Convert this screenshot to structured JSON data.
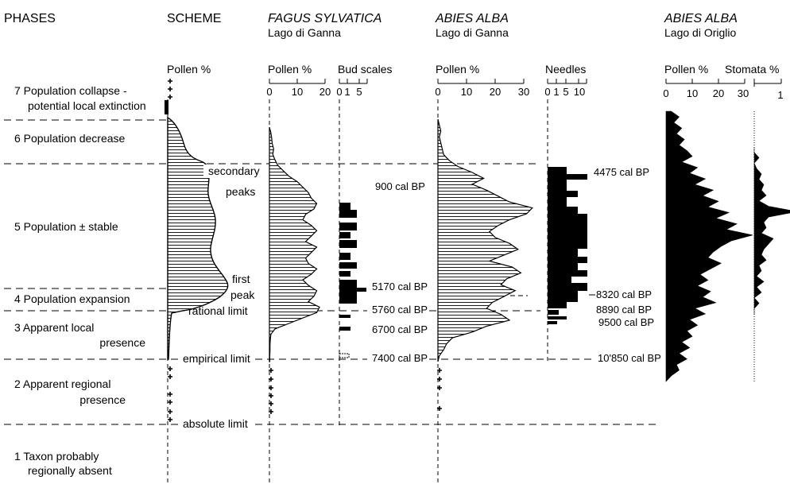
{
  "headers": {
    "phases": "PHASES",
    "scheme": "SCHEME",
    "fagus_title": "FAGUS SYLVATICA",
    "fagus_site": "Lago di Ganna",
    "abies_ganna_title": "ABIES ALBA",
    "abies_ganna_site": "Lago di Ganna",
    "abies_origlio_title": "ABIES ALBA",
    "abies_origlio_site": "Lago di Origlio"
  },
  "columns": {
    "scheme_pollen": "Pollen %",
    "fagus_pollen": "Pollen %",
    "bud_scales": "Bud scales",
    "abies_pollen": "Pollen %",
    "needles": "Needles",
    "origlio_pollen": "Pollen %",
    "stomata": "Stomata %"
  },
  "axes": {
    "fagus_pollen_ticks": [
      "0",
      "10",
      "20"
    ],
    "bud_scales_ticks": [
      "0",
      "1",
      "5"
    ],
    "abies_pollen_ticks": [
      "0",
      "10",
      "20",
      "30"
    ],
    "needles_ticks": [
      "0",
      "1",
      "5",
      "10"
    ],
    "origlio_pollen_ticks": [
      "0",
      "10",
      "20",
      "30"
    ],
    "stomata_ticks": [
      "1"
    ]
  },
  "phases": [
    {
      "line1": "7  Population collapse -",
      "line2": "potential local extinction"
    },
    {
      "line1": "6  Population decrease",
      "line2": ""
    },
    {
      "line1": "5  Population ± stable",
      "line2": ""
    },
    {
      "line1": "4  Population expansion",
      "line2": ""
    },
    {
      "line1": "3  Apparent local",
      "line2": "presence"
    },
    {
      "line1": "2  Apparent regional",
      "line2": "presence"
    },
    {
      "line1": "1  Taxon probably",
      "line2": "regionally absent"
    }
  ],
  "scheme_labels": {
    "secondary": "secondary",
    "peaks": "peaks",
    "first": "first",
    "peak": "peak",
    "rational_limit": "rational limit",
    "empirical_limit": "empirical limit",
    "absolute_limit": "absolute limit"
  },
  "dates": {
    "fagus": [
      "900 cal BP",
      "5170 cal BP",
      "5760 cal BP",
      "6700 cal BP",
      "7400 cal BP"
    ],
    "abies": [
      "4475 cal BP",
      "8320 cal BP",
      "8890 cal BP",
      "9500 cal BP",
      "10'850 cal BP"
    ]
  },
  "fagus_pollen_curve": [
    0,
    0.5,
    0.8,
    1,
    1.5,
    1.2,
    2,
    3,
    5,
    7,
    10,
    12,
    14,
    15,
    17,
    16,
    13,
    12,
    15,
    17,
    15,
    13,
    17,
    15,
    13,
    14,
    17,
    15,
    12,
    14,
    17,
    16,
    14,
    18,
    17,
    12,
    7,
    2,
    0.5,
    0.3,
    0.2,
    0.2,
    0.1,
    0.1
  ],
  "abies_pollen_curve": [
    0,
    0.5,
    1,
    0.5,
    1,
    1.5,
    2,
    4,
    7,
    12,
    16,
    12,
    17,
    21,
    25,
    33,
    31,
    25,
    21,
    18,
    20,
    25,
    28,
    23,
    18,
    26,
    29,
    24,
    22,
    27,
    23,
    19,
    17,
    22,
    25,
    17,
    12,
    5,
    3,
    2,
    0.5,
    0
  ],
  "origlio_pollen_curve": [
    2,
    5,
    3,
    6,
    4,
    7,
    5,
    8,
    10,
    6,
    12,
    9,
    15,
    11,
    18,
    14,
    20,
    16,
    24,
    19,
    27,
    23,
    33,
    25,
    21,
    18,
    16,
    21,
    17,
    13,
    16,
    12,
    17,
    14,
    19,
    11,
    15,
    9,
    12,
    8,
    10,
    6,
    9,
    5,
    8,
    4,
    5,
    2,
    0
  ],
  "stomata_curve": [
    0,
    0,
    0.2,
    0,
    0.1,
    0.3,
    0.2,
    0.4,
    0.3,
    0.5,
    0.2,
    0.6,
    1.8,
    0.6,
    0.4,
    0.5,
    0.3,
    0.8,
    0.6,
    0.4,
    0.3,
    0.5,
    0.2,
    0.3,
    0.1,
    0.4,
    0.1,
    0.3,
    0,
    0.2,
    0,
    0
  ]
}
